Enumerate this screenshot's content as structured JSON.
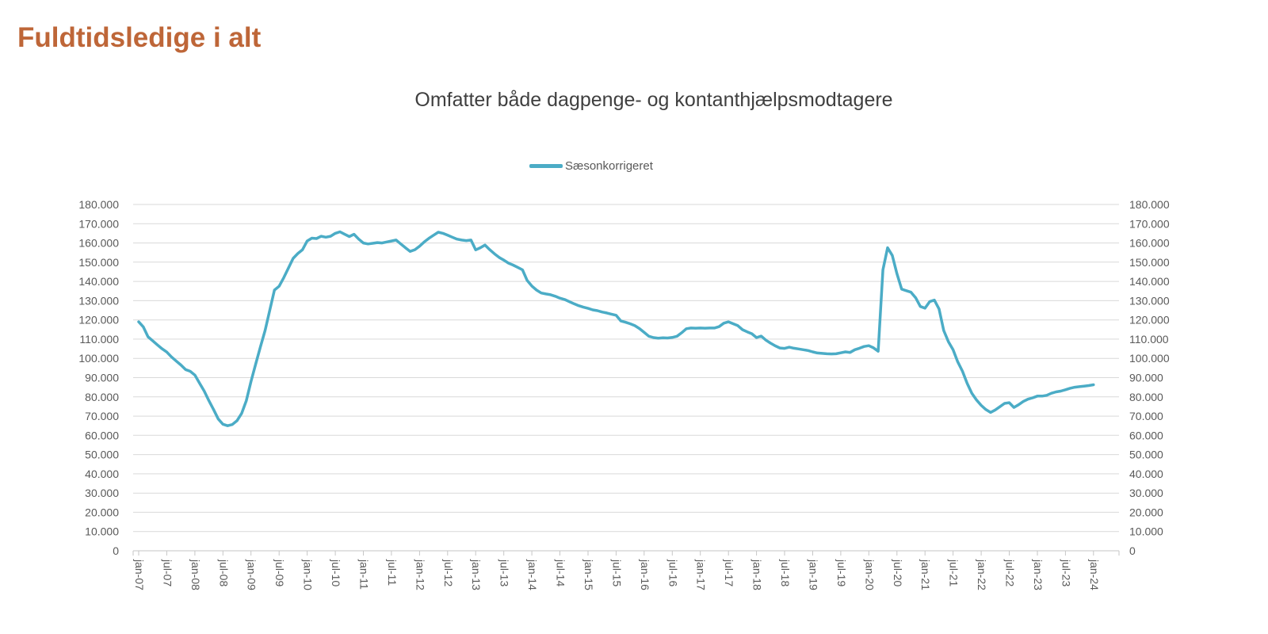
{
  "page_title": {
    "text": "Fuldtidsledige i alt",
    "color": "#BE6638"
  },
  "colors": {
    "series_line": "#4BACC6",
    "gridline": "#D9D9D9",
    "axis_line": "#C6C6C6",
    "axis_text": "#595959",
    "subtitle_text": "#3F3F3F"
  },
  "chart_data": {
    "type": "line",
    "title": "Omfatter både dagpenge- og kontanthjælpsmodtagere",
    "legend": {
      "position": "top-center",
      "entries": [
        {
          "label": "Sæsonkorrigeret",
          "color": "#4BACC6"
        }
      ]
    },
    "x_axis": {
      "unit": "month",
      "start": "jan-07",
      "end": "jan-24",
      "tick_every_months": 6,
      "tick_labels": [
        "jan-07",
        "jul-07",
        "jan-08",
        "jul-08",
        "jan-09",
        "jul-09",
        "jan-10",
        "jul-10",
        "jan-11",
        "jul-11",
        "jan-12",
        "jul-12",
        "jan-13",
        "jul-13",
        "jan-14",
        "jul-14",
        "jan-15",
        "jul-15",
        "jan-16",
        "jul-16",
        "jan-17",
        "jul-17",
        "jan-18",
        "jul-18",
        "jan-19",
        "jul-19",
        "jan-20",
        "jul-20",
        "jan-21",
        "jul-21",
        "jan-22",
        "jul-22",
        "jan-23",
        "jul-23",
        "jan-24"
      ]
    },
    "y_axis": {
      "min": 0,
      "max": 180000,
      "step": 10000,
      "sides": "both",
      "grid": true,
      "tick_labels": [
        "0",
        "10.000",
        "20.000",
        "30.000",
        "40.000",
        "50.000",
        "60.000",
        "70.000",
        "80.000",
        "90.000",
        "100.000",
        "110.000",
        "120.000",
        "130.000",
        "140.000",
        "150.000",
        "160.000",
        "170.000",
        "180.000"
      ]
    },
    "series": [
      {
        "name": "Sæsonkorrigeret",
        "color": "#4BACC6",
        "x_start": "jan-07",
        "x_interval_months": 1,
        "values": [
          119000,
          116300,
          111200,
          109100,
          107000,
          105000,
          103300,
          100800,
          98700,
          96600,
          94200,
          93300,
          91300,
          87100,
          83000,
          78000,
          73400,
          68500,
          65800,
          65000,
          65600,
          67600,
          71400,
          78000,
          88000,
          97000,
          106000,
          114500,
          125000,
          135500,
          137500,
          142000,
          147000,
          152000,
          154500,
          156500,
          161000,
          162500,
          162300,
          163500,
          163000,
          163500,
          165000,
          165800,
          164500,
          163300,
          164500,
          162000,
          160000,
          159500,
          159800,
          160200,
          160000,
          160500,
          161000,
          161500,
          159500,
          157500,
          155600,
          156500,
          158300,
          160500,
          162400,
          164000,
          165600,
          165000,
          164000,
          163000,
          162000,
          161500,
          161200,
          161500,
          156400,
          157500,
          158900,
          156500,
          154400,
          152500,
          151100,
          149500,
          148500,
          147300,
          146000,
          140500,
          137600,
          135500,
          134000,
          133500,
          133100,
          132300,
          131300,
          130600,
          129500,
          128400,
          127400,
          126600,
          126000,
          125200,
          124800,
          124100,
          123600,
          123000,
          122400,
          119500,
          118800,
          118000,
          117000,
          115500,
          113500,
          111500,
          110800,
          110500,
          110700,
          110600,
          110900,
          111500,
          113300,
          115400,
          115800,
          115700,
          115800,
          115700,
          115800,
          115800,
          116500,
          118300,
          119000,
          118000,
          117000,
          114900,
          113800,
          112800,
          110800,
          111600,
          109500,
          107900,
          106500,
          105400,
          105200,
          105800,
          105300,
          104900,
          104500,
          104100,
          103400,
          102800,
          102600,
          102400,
          102300,
          102400,
          102900,
          103400,
          103100,
          104500,
          105300,
          106200,
          106600,
          105500,
          103700,
          146000,
          157500,
          153500,
          144000,
          136000,
          135200,
          134400,
          131500,
          127000,
          126100,
          129500,
          130300,
          125700,
          114500,
          108700,
          104500,
          98200,
          93300,
          87000,
          81900,
          78400,
          75600,
          73400,
          71900,
          73200,
          74900,
          76600,
          77000,
          74500,
          75900,
          77600,
          78800,
          79500,
          80400,
          80400,
          80800,
          81900,
          82600,
          83000,
          83700,
          84500,
          85000,
          85300,
          85600,
          85900,
          86300
        ]
      }
    ]
  }
}
